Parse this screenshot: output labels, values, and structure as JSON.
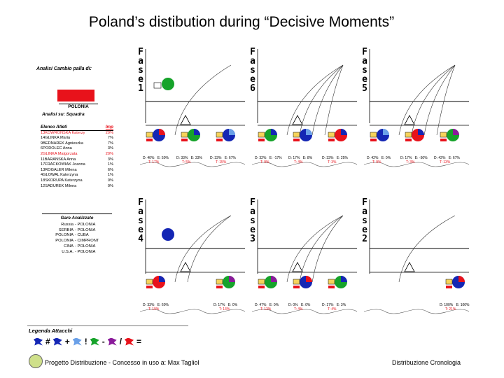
{
  "title": "Poland’s distibution during “Decisive Moments”",
  "left_panel": {
    "analysis_label": "Analisi Cambio palla di:",
    "team": "POLONIA",
    "analisi_su": "Analisi su: Squadra",
    "athletes_header": "Elenco Atleti",
    "imp_header": "Imp",
    "athletes": [
      {
        "name": "13KOWRONSKA Katerzy",
        "imp": "29%",
        "highlight": true
      },
      {
        "name": "14GLINKA Maria",
        "imp": "7%",
        "highlight": false
      },
      {
        "name": "9BEDNAREK Agnieszka",
        "imp": "7%",
        "highlight": false
      },
      {
        "name": "6PODOLEC Anna",
        "imp": "3%",
        "highlight": false
      },
      {
        "name": "2GLINKA Malgorzata",
        "imp": "20%",
        "highlight": true
      },
      {
        "name": "11BARANSKA Anna",
        "imp": "3%",
        "highlight": false
      },
      {
        "name": "17FRACKOWIAK Joanna",
        "imp": "1%",
        "highlight": false
      },
      {
        "name": "13ROGALER Milena",
        "imp": "6%",
        "highlight": false
      },
      {
        "name": "4GLOWAL Katerzyna",
        "imp": "1%",
        "highlight": false
      },
      {
        "name": "18SKORUPA Katerzyna",
        "imp": "0%",
        "highlight": false
      },
      {
        "name": "12SADUREK Milena",
        "imp": "0%",
        "highlight": false
      }
    ],
    "gare_title": "Gare Analizzate",
    "gare": [
      [
        "Russia",
        "- POLONIA"
      ],
      [
        "SERBIA",
        "- POLONIA"
      ],
      [
        "POLONIA",
        "- CUBA"
      ],
      [
        "POLONIA",
        "- CIMPRONT"
      ],
      [
        "CINA",
        "- POLONIA"
      ],
      [
        "U.S.A.",
        "- POLONIA"
      ]
    ]
  },
  "legend": {
    "title": "Legenda Attacchi",
    "symbols": [
      "#",
      "+",
      "!",
      "-",
      "/",
      "="
    ]
  },
  "footer": {
    "left": "Progetto Distribuzione - Concesso in uso a: Max Tagliol",
    "right": "Distribuzione Cronologia"
  },
  "phases": [
    {
      "label": "Fase1",
      "letters": [
        "F",
        "a",
        "s",
        "e",
        "1"
      ],
      "badge": "1",
      "stats": [
        "D: 40%",
        "E: 50%",
        "D: 33%",
        "E: 33%",
        "D: 33%",
        "E: 67%"
      ],
      "totals": [
        "T: 17%",
        "T: 5%",
        "T: 15%"
      ]
    },
    {
      "label": "Fase6",
      "letters": [
        "F",
        "a",
        "s",
        "e",
        "6"
      ],
      "badge": "",
      "stats": [
        "D: 32%",
        "E: -17%",
        "D: 17%",
        "E: 8%",
        "D: 33%",
        "E: 25%"
      ],
      "totals": [
        "T: 9%",
        "T: 4%",
        "T: 3%"
      ]
    },
    {
      "label": "Fase5",
      "letters": [
        "F",
        "a",
        "s",
        "e",
        "5"
      ],
      "badge": "",
      "stats": [
        "D: 42%",
        "E: 0%",
        "D: 17%",
        "E: -50%",
        "D: 42%",
        "E: 67%"
      ],
      "totals": [
        "T: 9%",
        "T: 3%",
        "T: 13%"
      ]
    },
    {
      "label": "Fase4",
      "letters": [
        "F",
        "a",
        "s",
        "e",
        "4"
      ],
      "badge": "1",
      "stats": [
        "D: 33%",
        "E: 60%",
        "D: 17%",
        "E: 0%"
      ],
      "totals": [
        "T: 19%",
        "T: 13%"
      ]
    },
    {
      "label": "Fase3",
      "letters": [
        "F",
        "a",
        "s",
        "e",
        "3"
      ],
      "badge": "",
      "stats": [
        "D: 47%",
        "E: 0%",
        "D: 0%",
        "E: 0%",
        "D: 17%",
        "E: 3%"
      ],
      "totals": [
        "T: 13%",
        "T: 4%",
        "T: 4%"
      ]
    },
    {
      "label": "Fase2",
      "letters": [
        "F",
        "a",
        "s",
        "e",
        "2"
      ],
      "badge": "",
      "stats": [
        "D: 100%",
        "E: 100%"
      ],
      "totals": [
        "T: 21%"
      ]
    }
  ],
  "colors": {
    "red": "#e8121b",
    "blue": "#1426b4",
    "green": "#16a32a",
    "purple": "#8a1a9a",
    "light_blue": "#6aa0e8"
  }
}
